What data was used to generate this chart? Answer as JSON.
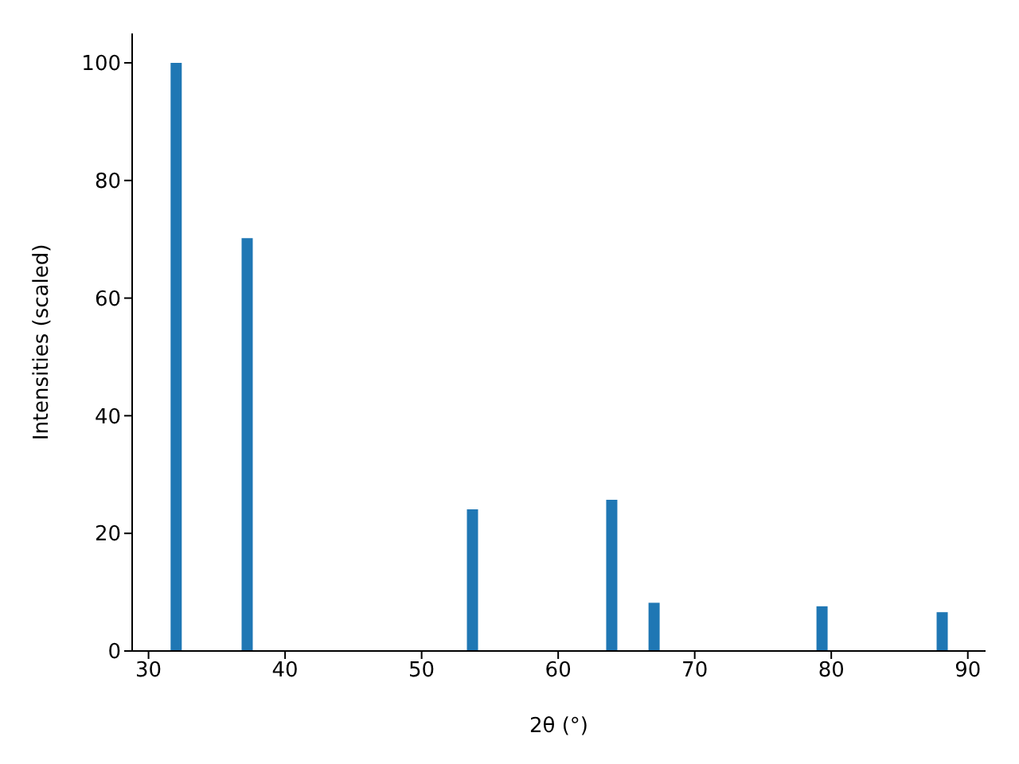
{
  "chart_data": {
    "type": "bar",
    "xlabel": "2θ (°)",
    "ylabel": "Intensities (scaled)",
    "x": [
      32.0,
      37.2,
      53.7,
      63.9,
      67.0,
      79.3,
      88.1
    ],
    "values": [
      100,
      70.2,
      24.1,
      25.7,
      8.2,
      7.6,
      6.6
    ],
    "color": "#1f77b4",
    "xlim": [
      28.8,
      91.3
    ],
    "xticks": [
      30,
      40,
      50,
      60,
      70,
      80,
      90
    ],
    "ylim": [
      0,
      105
    ],
    "yticks": [
      0,
      20,
      40,
      60,
      80,
      100
    ],
    "grid": false,
    "legend": false
  }
}
